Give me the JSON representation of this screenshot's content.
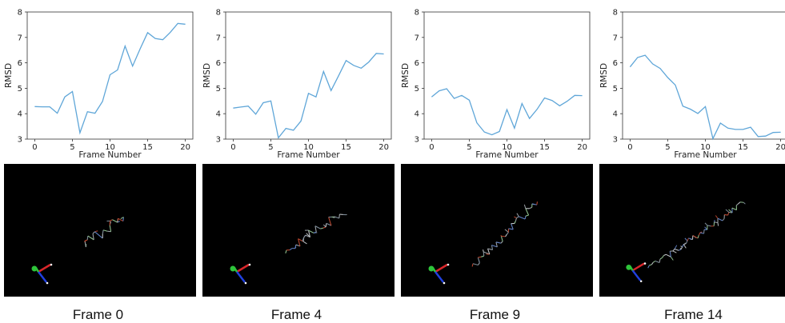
{
  "colors": {
    "line": "#5fa6d8",
    "viewport_bg": "#000000"
  },
  "panels": [
    {
      "caption": "Frame 0"
    },
    {
      "caption": "Frame 4"
    },
    {
      "caption": "Frame 9"
    },
    {
      "caption": "Frame 14"
    }
  ],
  "chart_data": [
    {
      "type": "line",
      "xlabel": "Frame Number",
      "ylabel": "RMSD",
      "xlim": [
        -1,
        21
      ],
      "ylim": [
        3,
        8
      ],
      "xticks": [
        0,
        5,
        10,
        15,
        20
      ],
      "yticks": [
        3,
        4,
        5,
        6,
        7,
        8
      ],
      "grid": false,
      "x": [
        0,
        1,
        2,
        3,
        4,
        5,
        6,
        7,
        8,
        9,
        10,
        11,
        12,
        13,
        14,
        15,
        16,
        17,
        18,
        19,
        20
      ],
      "y": [
        4.28,
        4.27,
        4.27,
        4.02,
        4.66,
        4.87,
        3.25,
        4.08,
        4.02,
        4.48,
        5.53,
        5.72,
        6.66,
        5.87,
        6.55,
        7.19,
        6.96,
        6.91,
        7.2,
        7.55,
        7.52
      ]
    },
    {
      "type": "line",
      "xlabel": "Frame Number",
      "ylabel": "RMSD",
      "xlim": [
        -1,
        21
      ],
      "ylim": [
        3,
        8
      ],
      "xticks": [
        0,
        5,
        10,
        15,
        20
      ],
      "yticks": [
        3,
        4,
        5,
        6,
        7,
        8
      ],
      "grid": false,
      "x": [
        0,
        1,
        2,
        3,
        4,
        5,
        6,
        7,
        8,
        9,
        10,
        11,
        12,
        13,
        14,
        15,
        16,
        17,
        18,
        19,
        20
      ],
      "y": [
        4.22,
        4.26,
        4.3,
        3.98,
        4.43,
        4.5,
        3.05,
        3.42,
        3.35,
        3.71,
        4.8,
        4.66,
        5.66,
        4.91,
        5.49,
        6.09,
        5.9,
        5.79,
        6.03,
        6.37,
        6.35
      ]
    },
    {
      "type": "line",
      "xlabel": "Frame Number",
      "ylabel": "RMSD",
      "xlim": [
        -1,
        21
      ],
      "ylim": [
        3,
        8
      ],
      "xticks": [
        0,
        5,
        10,
        15,
        20
      ],
      "yticks": [
        3,
        4,
        5,
        6,
        7,
        8
      ],
      "grid": false,
      "x": [
        0,
        1,
        2,
        3,
        4,
        5,
        6,
        7,
        8,
        9,
        10,
        11,
        12,
        13,
        14,
        15,
        16,
        17,
        18,
        19,
        20
      ],
      "y": [
        4.66,
        4.9,
        4.98,
        4.6,
        4.72,
        4.53,
        3.64,
        3.28,
        3.17,
        3.3,
        4.16,
        3.43,
        4.4,
        3.81,
        4.17,
        4.62,
        4.52,
        4.31,
        4.49,
        4.72,
        4.71
      ]
    },
    {
      "type": "line",
      "xlabel": "Frame Number",
      "ylabel": "RMSD",
      "xlim": [
        -1,
        21
      ],
      "ylim": [
        3,
        8
      ],
      "xticks": [
        0,
        5,
        10,
        15,
        20
      ],
      "yticks": [
        3,
        4,
        5,
        6,
        7,
        8
      ],
      "grid": false,
      "x": [
        0,
        1,
        2,
        3,
        4,
        5,
        6,
        7,
        8,
        9,
        10,
        11,
        12,
        13,
        14,
        15,
        16,
        17,
        18,
        19,
        20
      ],
      "y": [
        5.84,
        6.21,
        6.3,
        5.96,
        5.78,
        5.42,
        5.13,
        4.3,
        4.18,
        4.01,
        4.28,
        3.02,
        3.63,
        3.43,
        3.38,
        3.38,
        3.47,
        3.1,
        3.12,
        3.26,
        3.27
      ]
    }
  ]
}
